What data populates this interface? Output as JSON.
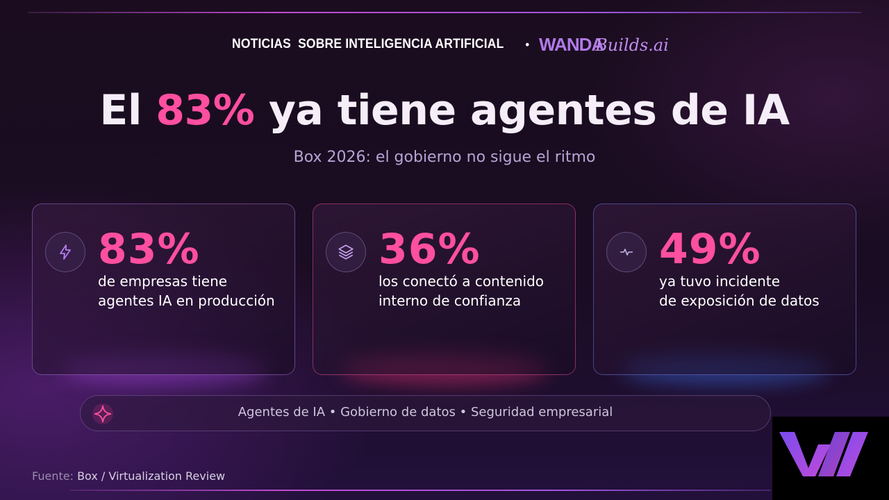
{
  "header": {
    "kicker": "NOTICIAS  SOBRE INTELIGENCIA ARTIFICIAL",
    "separator": "•",
    "brand": "WANDA",
    "brand_script": "Builds.ai"
  },
  "title": {
    "before": "El",
    "highlight": "83%",
    "after": "ya tiene agentes de IA"
  },
  "subtitle": "Box 2026: el gobierno no sigue el ritmo",
  "cards": [
    {
      "stat": "83%",
      "lines": [
        "de empresas tiene",
        "agentes IA en producción"
      ]
    },
    {
      "stat": "36%",
      "lines": [
        "los conectó a contenido",
        "interno de confianza"
      ]
    },
    {
      "stat": "49%",
      "lines": [
        "ya tuvo incidente",
        "de exposición de datos"
      ]
    }
  ],
  "tags": "Agentes de IA • Gobierno de datos • Seguridad empresarial",
  "source": {
    "label": "Fuente:",
    "value": "Box / Virtualization Review"
  }
}
